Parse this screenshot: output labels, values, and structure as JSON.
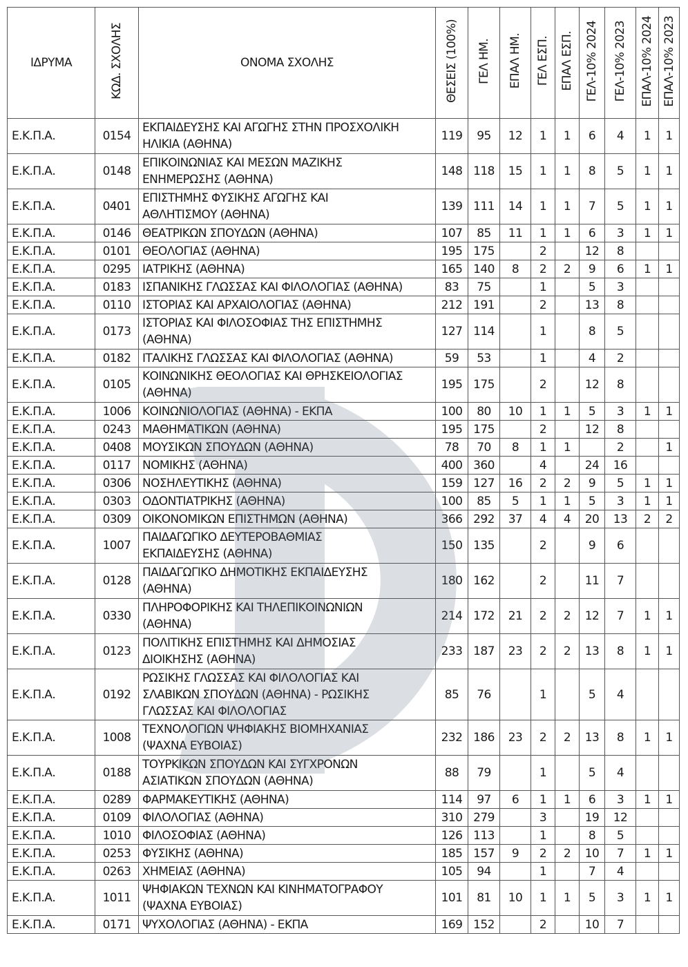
{
  "headers": [
    "ΙΔΡΥΜΑ",
    "ΚΩΔ. ΣΧΟΛΗΣ",
    "ΟΝΟΜΑ ΣΧΟΛΗΣ",
    "ΘΕΣΕΙΣ  (100%)",
    "ΓΕΛ ΗΜ.",
    "ΕΠΑΛ ΗΜ.",
    "ΓΕΛ ΕΣΠ.",
    "ΕΠΑΛ ΕΣΠ.",
    "ΓΕΛ-10% 2024",
    "ΓΕΛ-10% 2023",
    "ΕΠΑΛ-10% 2024",
    "ΕΠΑΛ-10% 2023"
  ],
  "watermark_color": "#5f6e82",
  "rows": [
    [
      "Ε.Κ.Π.Α.",
      "0154",
      "ΕΚΠΑΙΔΕΥΣΗΣ ΚΑΙ ΑΓΩΓΗΣ ΣΤΗΝ ΠΡΟΣΧΟΛΙΚΗ\nΗΛΙΚΙΑ (ΑΘΗΝΑ)",
      "119",
      "95",
      "12",
      "1",
      "1",
      "6",
      "4",
      "1",
      "1"
    ],
    [
      "Ε.Κ.Π.Α.",
      "0148",
      "ΕΠΙΚΟΙΝΩΝΙΑΣ ΚΑΙ ΜΕΣΩΝ ΜΑΖΙΚΗΣ\nΕΝΗΜΕΡΩΣΗΣ (ΑΘΗΝΑ)",
      "148",
      "118",
      "15",
      "1",
      "1",
      "8",
      "5",
      "1",
      "1"
    ],
    [
      "Ε.Κ.Π.Α.",
      "0401",
      "ΕΠΙΣΤΗΜΗΣ ΦΥΣΙΚΗΣ ΑΓΩΓΗΣ ΚΑΙ\nΑΘΛΗΤΙΣΜΟΥ (ΑΘΗΝΑ)",
      "139",
      "111",
      "14",
      "1",
      "1",
      "7",
      "5",
      "1",
      "1"
    ],
    [
      "Ε.Κ.Π.Α.",
      "0146",
      "ΘΕΑΤΡΙΚΩΝ ΣΠΟΥΔΩΝ (ΑΘΗΝΑ)",
      "107",
      "85",
      "11",
      "1",
      "1",
      "6",
      "3",
      "1",
      "1"
    ],
    [
      "Ε.Κ.Π.Α.",
      "0101",
      "ΘΕΟΛΟΓΙΑΣ (ΑΘΗΝΑ)",
      "195",
      "175",
      "",
      "2",
      "",
      "12",
      "8",
      "",
      ""
    ],
    [
      "Ε.Κ.Π.Α.",
      "0295",
      "ΙΑΤΡΙΚΗΣ (ΑΘΗΝΑ)",
      "165",
      "140",
      "8",
      "2",
      "2",
      "9",
      "6",
      "1",
      "1"
    ],
    [
      "Ε.Κ.Π.Α.",
      "0183",
      "ΙΣΠΑΝΙΚΗΣ ΓΛΩΣΣΑΣ ΚΑΙ ΦΙΛΟΛΟΓΙΑΣ (ΑΘΗΝΑ)",
      "83",
      "75",
      "",
      "1",
      "",
      "5",
      "3",
      "",
      ""
    ],
    [
      "Ε.Κ.Π.Α.",
      "0110",
      "ΙΣΤΟΡΙΑΣ ΚΑΙ ΑΡΧΑΙΟΛΟΓΙΑΣ (ΑΘΗΝΑ)",
      "212",
      "191",
      "",
      "2",
      "",
      "13",
      "8",
      "",
      ""
    ],
    [
      "Ε.Κ.Π.Α.",
      "0173",
      "ΙΣΤΟΡΙΑΣ ΚΑΙ ΦΙΛΟΣΟΦΙΑΣ ΤΗΣ ΕΠΙΣΤΗΜΗΣ\n(ΑΘΗΝΑ)",
      "127",
      "114",
      "",
      "1",
      "",
      "8",
      "5",
      "",
      ""
    ],
    [
      "Ε.Κ.Π.Α.",
      "0182",
      "ΙΤΑΛΙΚΗΣ ΓΛΩΣΣΑΣ ΚΑΙ ΦΙΛΟΛΟΓΙΑΣ (ΑΘΗΝΑ)",
      "59",
      "53",
      "",
      "1",
      "",
      "4",
      "2",
      "",
      ""
    ],
    [
      "Ε.Κ.Π.Α.",
      "0105",
      "ΚΟΙΝΩΝΙΚΗΣ ΘΕΟΛΟΓΙΑΣ ΚΑΙ ΘΡΗΣΚΕΙΟΛΟΓΙΑΣ\n(ΑΘΗΝΑ)",
      "195",
      "175",
      "",
      "2",
      "",
      "12",
      "8",
      "",
      ""
    ],
    [
      "Ε.Κ.Π.Α.",
      "1006",
      "ΚΟΙΝΩΝΙΟΛΟΓΙΑΣ (ΑΘΗΝΑ) - ΕΚΠΑ",
      "100",
      "80",
      "10",
      "1",
      "1",
      "5",
      "3",
      "1",
      "1"
    ],
    [
      "Ε.Κ.Π.Α.",
      "0243",
      "ΜΑΘΗΜΑΤΙΚΩΝ (ΑΘΗΝΑ)",
      "195",
      "175",
      "",
      "2",
      "",
      "12",
      "8",
      "",
      ""
    ],
    [
      "Ε.Κ.Π.Α.",
      "0408",
      "ΜΟΥΣΙΚΩΝ ΣΠΟΥΔΩΝ (ΑΘΗΝΑ)",
      "78",
      "70",
      "8",
      "1",
      "1",
      "",
      "2",
      "",
      "1"
    ],
    [
      "Ε.Κ.Π.Α.",
      "0117",
      "ΝΟΜΙΚΗΣ (ΑΘΗΝΑ)",
      "400",
      "360",
      "",
      "4",
      "",
      "24",
      "16",
      "",
      ""
    ],
    [
      "Ε.Κ.Π.Α.",
      "0306",
      "ΝΟΣΗΛΕΥΤΙΚΗΣ (ΑΘΗΝΑ)",
      "159",
      "127",
      "16",
      "2",
      "2",
      "9",
      "5",
      "1",
      "1"
    ],
    [
      "Ε.Κ.Π.Α.",
      "0303",
      "ΟΔΟΝΤΙΑΤΡΙΚΗΣ (ΑΘΗΝΑ)",
      "100",
      "85",
      "5",
      "1",
      "1",
      "5",
      "3",
      "1",
      "1"
    ],
    [
      "Ε.Κ.Π.Α.",
      "0309",
      "ΟΙΚΟΝΟΜΙΚΩΝ ΕΠΙΣΤΗΜΩΝ (ΑΘΗΝΑ)",
      "366",
      "292",
      "37",
      "4",
      "4",
      "20",
      "13",
      "2",
      "2"
    ],
    [
      "Ε.Κ.Π.Α.",
      "1007",
      "ΠΑΙΔΑΓΩΓΙΚΟ ΔΕΥΤΕΡΟΒΑΘΜΙΑΣ\nΕΚΠΑΙΔΕΥΣΗΣ (ΑΘΗΝΑ)",
      "150",
      "135",
      "",
      "2",
      "",
      "9",
      "6",
      "",
      ""
    ],
    [
      "Ε.Κ.Π.Α.",
      "0128",
      "ΠΑΙΔΑΓΩΓΙΚΟ ΔΗΜΟΤΙΚΗΣ ΕΚΠΑΙΔΕΥΣΗΣ\n(ΑΘΗΝΑ)",
      "180",
      "162",
      "",
      "2",
      "",
      "11",
      "7",
      "",
      ""
    ],
    [
      "Ε.Κ.Π.Α.",
      "0330",
      "ΠΛΗΡΟΦΟΡΙΚΗΣ ΚΑΙ ΤΗΛΕΠΙΚΟΙΝΩΝΙΩΝ\n(ΑΘΗΝΑ)",
      "214",
      "172",
      "21",
      "2",
      "2",
      "12",
      "7",
      "1",
      "1"
    ],
    [
      "Ε.Κ.Π.Α.",
      "0123",
      "ΠΟΛΙΤΙΚΗΣ ΕΠΙΣΤΗΜΗΣ ΚΑΙ ΔΗΜΟΣΙΑΣ\nΔΙΟΙΚΗΣΗΣ (ΑΘΗΝΑ)",
      "233",
      "187",
      "23",
      "2",
      "2",
      "13",
      "8",
      "1",
      "1"
    ],
    [
      "Ε.Κ.Π.Α.",
      "0192",
      "ΡΩΣΙΚΗΣ ΓΛΩΣΣΑΣ ΚΑΙ ΦΙΛΟΛΟΓΙΑΣ ΚΑΙ\nΣΛΑΒΙΚΩΝ ΣΠΟΥΔΩΝ (ΑΘΗΝΑ) - ΡΩΣΙΚΗΣ\nΓΛΩΣΣΑΣ ΚΑΙ ΦΙΛΟΛΟΓΙΑΣ",
      "85",
      "76",
      "",
      "1",
      "",
      "5",
      "4",
      "",
      ""
    ],
    [
      "Ε.Κ.Π.Α.",
      "1008",
      "ΤΕΧΝΟΛΟΓΙΩΝ ΨΗΦΙΑΚΗΣ ΒΙΟΜΗΧΑΝΙΑΣ\n(ΨΑΧΝΑ ΕΥΒΟΙΑΣ)",
      "232",
      "186",
      "23",
      "2",
      "2",
      "13",
      "8",
      "1",
      "1"
    ],
    [
      "Ε.Κ.Π.Α.",
      "0188",
      "ΤΟΥΡΚΙΚΩΝ ΣΠΟΥΔΩΝ ΚΑΙ ΣΥΓΧΡΟΝΩΝ\nΑΣΙΑΤΙΚΩΝ ΣΠΟΥΔΩΝ (ΑΘΗΝΑ)",
      "88",
      "79",
      "",
      "1",
      "",
      "5",
      "4",
      "",
      ""
    ],
    [
      "Ε.Κ.Π.Α.",
      "0289",
      "ΦΑΡΜΑΚΕΥΤΙΚΗΣ (ΑΘΗΝΑ)",
      "114",
      "97",
      "6",
      "1",
      "1",
      "6",
      "3",
      "1",
      "1"
    ],
    [
      "Ε.Κ.Π.Α.",
      "0109",
      "ΦΙΛΟΛΟΓΙΑΣ (ΑΘΗΝΑ)",
      "310",
      "279",
      "",
      "3",
      "",
      "19",
      "12",
      "",
      ""
    ],
    [
      "Ε.Κ.Π.Α.",
      "1010",
      "ΦΙΛΟΣΟΦΙΑΣ (ΑΘΗΝΑ)",
      "126",
      "113",
      "",
      "1",
      "",
      "8",
      "5",
      "",
      ""
    ],
    [
      "Ε.Κ.Π.Α.",
      "0253",
      "ΦΥΣΙΚΗΣ (ΑΘΗΝΑ)",
      "185",
      "157",
      "9",
      "2",
      "2",
      "10",
      "7",
      "1",
      "1"
    ],
    [
      "Ε.Κ.Π.Α.",
      "0263",
      "ΧΗΜΕΙΑΣ (ΑΘΗΝΑ)",
      "105",
      "94",
      "",
      "1",
      "",
      "7",
      "4",
      "",
      ""
    ],
    [
      "Ε.Κ.Π.Α.",
      "1011",
      "ΨΗΦΙΑΚΩΝ ΤΕΧΝΩΝ ΚΑΙ ΚΙΝΗΜΑΤΟΓΡΑΦΟΥ\n(ΨΑΧΝΑ ΕΥΒΟΙΑΣ)",
      "101",
      "81",
      "10",
      "1",
      "1",
      "5",
      "3",
      "1",
      "1"
    ],
    [
      "Ε.Κ.Π.Α.",
      "0171",
      "ΨΥΧΟΛΟΓΙΑΣ (ΑΘΗΝΑ) - ΕΚΠΑ",
      "169",
      "152",
      "",
      "2",
      "",
      "10",
      "7",
      "",
      ""
    ]
  ]
}
